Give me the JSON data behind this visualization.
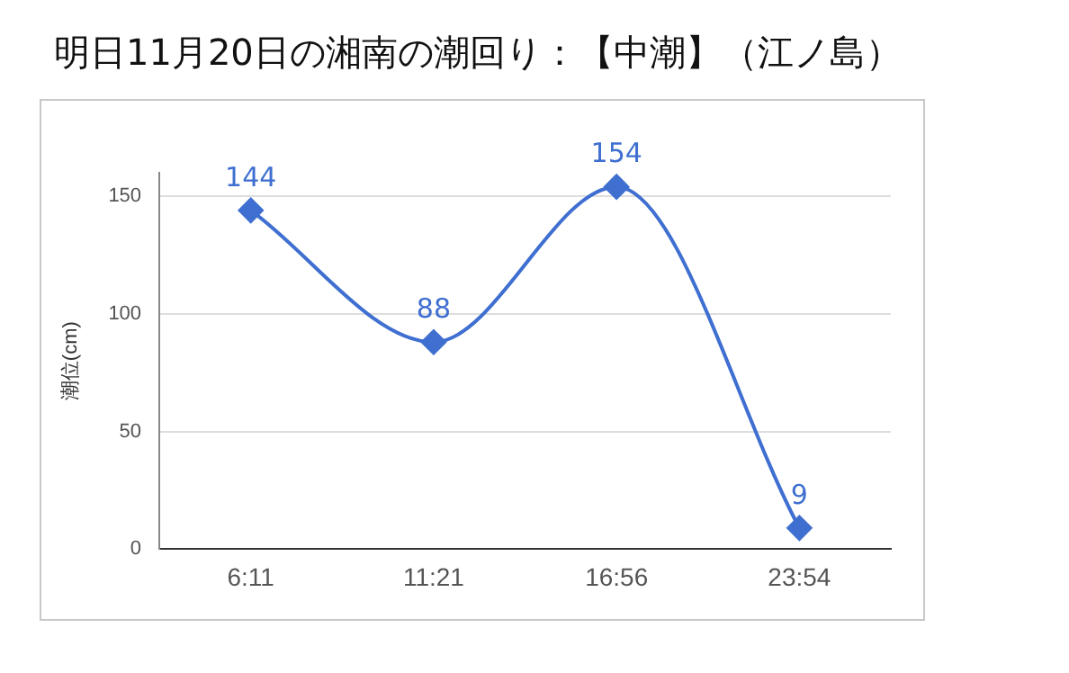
{
  "chart_data": {
    "type": "line",
    "title": "明日11月20日の湘南の潮回り：【中潮】（江ノ島）",
    "ylabel": "潮位(cm)",
    "categories": [
      "6:11",
      "11:21",
      "16:56",
      "23:54"
    ],
    "series": [
      {
        "color": "#3f6fd0",
        "values": [
          144,
          88,
          154,
          9
        ]
      }
    ],
    "ylim": [
      0,
      160
    ],
    "yticks": [
      0,
      50,
      100,
      150
    ],
    "grid": "y",
    "legend": false,
    "marker": "diamond",
    "line_style": "solid",
    "data_labels": true
  }
}
